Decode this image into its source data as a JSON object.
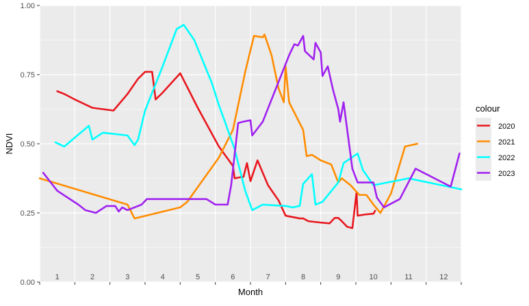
{
  "chart_data": {
    "type": "line",
    "xlabel": "Month",
    "ylabel": "NDVI",
    "ylim": [
      0,
      1
    ],
    "xlim": [
      0.5,
      12.5
    ],
    "y_ticks": [
      "0.00",
      "0.25",
      "0.50",
      "0.75",
      "1.00"
    ],
    "y_tick_values": [
      0,
      0.25,
      0.5,
      0.75,
      1
    ],
    "month_labels": [
      "1",
      "2",
      "3",
      "4",
      "5",
      "6",
      "7",
      "8",
      "9",
      "10",
      "11",
      "12"
    ],
    "grid": true,
    "legend": {
      "title": "colour",
      "placement": "right"
    },
    "series": [
      {
        "name": "2020",
        "color": "#e8161d",
        "points": [
          [
            1.0,
            0.69
          ],
          [
            1.2,
            0.68
          ],
          [
            1.5,
            0.66
          ],
          [
            2.0,
            0.63
          ],
          [
            2.3,
            0.625
          ],
          [
            2.6,
            0.62
          ],
          [
            3.0,
            0.68
          ],
          [
            3.3,
            0.735
          ],
          [
            3.5,
            0.76
          ],
          [
            3.7,
            0.76
          ],
          [
            3.8,
            0.66
          ],
          [
            4.0,
            0.685
          ],
          [
            4.5,
            0.755
          ],
          [
            5.0,
            0.63
          ],
          [
            5.6,
            0.49
          ],
          [
            6.0,
            0.42
          ],
          [
            6.05,
            0.375
          ],
          [
            6.25,
            0.38
          ],
          [
            6.3,
            0.38
          ],
          [
            6.4,
            0.43
          ],
          [
            6.5,
            0.365
          ],
          [
            6.7,
            0.44
          ],
          [
            7.0,
            0.35
          ],
          [
            7.3,
            0.295
          ],
          [
            7.5,
            0.24
          ],
          [
            7.9,
            0.23
          ],
          [
            8.0,
            0.23
          ],
          [
            8.15,
            0.22
          ],
          [
            8.5,
            0.215
          ],
          [
            8.75,
            0.212
          ],
          [
            8.9,
            0.232
          ],
          [
            9.0,
            0.232
          ],
          [
            9.1,
            0.22
          ],
          [
            9.25,
            0.2
          ],
          [
            9.4,
            0.195
          ],
          [
            9.52,
            0.325
          ],
          [
            9.55,
            0.24
          ],
          [
            9.8,
            0.245
          ],
          [
            10.0,
            0.247
          ],
          [
            10.05,
            0.258
          ]
        ]
      },
      {
        "name": "2021",
        "color": "#ff8c00",
        "points": [
          [
            0.5,
            0.375
          ],
          [
            3.0,
            0.28
          ],
          [
            3.2,
            0.23
          ],
          [
            4.5,
            0.27
          ],
          [
            4.7,
            0.29
          ],
          [
            5.6,
            0.45
          ],
          [
            6.0,
            0.55
          ],
          [
            6.35,
            0.76
          ],
          [
            6.6,
            0.89
          ],
          [
            6.85,
            0.885
          ],
          [
            6.9,
            0.895
          ],
          [
            7.1,
            0.82
          ],
          [
            7.3,
            0.7
          ],
          [
            7.45,
            0.65
          ],
          [
            7.5,
            0.78
          ],
          [
            7.6,
            0.65
          ],
          [
            8.0,
            0.55
          ],
          [
            8.1,
            0.455
          ],
          [
            8.25,
            0.46
          ],
          [
            8.5,
            0.44
          ],
          [
            8.8,
            0.425
          ],
          [
            9.0,
            0.36
          ],
          [
            9.1,
            0.375
          ],
          [
            9.35,
            0.35
          ],
          [
            9.6,
            0.315
          ],
          [
            9.8,
            0.315
          ],
          [
            10.0,
            0.28
          ],
          [
            10.2,
            0.25
          ],
          [
            10.5,
            0.32
          ],
          [
            10.9,
            0.49
          ],
          [
            11.25,
            0.5
          ]
        ]
      },
      {
        "name": "2022",
        "color": "#00ffff",
        "points": [
          [
            0.95,
            0.505
          ],
          [
            1.2,
            0.49
          ],
          [
            1.9,
            0.565
          ],
          [
            2.0,
            0.515
          ],
          [
            2.3,
            0.54
          ],
          [
            3.0,
            0.53
          ],
          [
            3.2,
            0.495
          ],
          [
            3.3,
            0.515
          ],
          [
            3.5,
            0.62
          ],
          [
            4.0,
            0.78
          ],
          [
            4.4,
            0.915
          ],
          [
            4.6,
            0.93
          ],
          [
            4.9,
            0.875
          ],
          [
            5.4,
            0.72
          ],
          [
            5.6,
            0.64
          ],
          [
            5.8,
            0.57
          ],
          [
            6.05,
            0.48
          ],
          [
            6.35,
            0.33
          ],
          [
            6.55,
            0.26
          ],
          [
            6.85,
            0.28
          ],
          [
            7.5,
            0.275
          ],
          [
            7.7,
            0.27
          ],
          [
            7.9,
            0.275
          ],
          [
            8.0,
            0.355
          ],
          [
            8.25,
            0.39
          ],
          [
            8.35,
            0.28
          ],
          [
            8.55,
            0.29
          ],
          [
            9.0,
            0.36
          ],
          [
            9.15,
            0.43
          ],
          [
            9.55,
            0.465
          ],
          [
            9.7,
            0.405
          ],
          [
            10.0,
            0.35
          ],
          [
            11.0,
            0.375
          ],
          [
            12.5,
            0.335
          ]
        ]
      },
      {
        "name": "2023",
        "color": "#a020f0",
        "points": [
          [
            0.6,
            0.395
          ],
          [
            1.0,
            0.33
          ],
          [
            1.6,
            0.28
          ],
          [
            1.8,
            0.26
          ],
          [
            2.1,
            0.25
          ],
          [
            2.4,
            0.275
          ],
          [
            2.65,
            0.275
          ],
          [
            2.75,
            0.255
          ],
          [
            2.85,
            0.27
          ],
          [
            3.0,
            0.26
          ],
          [
            3.2,
            0.27
          ],
          [
            3.4,
            0.28
          ],
          [
            3.55,
            0.3
          ],
          [
            4.5,
            0.3
          ],
          [
            5.25,
            0.3
          ],
          [
            5.5,
            0.28
          ],
          [
            5.85,
            0.28
          ],
          [
            5.95,
            0.35
          ],
          [
            6.15,
            0.575
          ],
          [
            6.3,
            0.58
          ],
          [
            6.5,
            0.585
          ],
          [
            6.55,
            0.53
          ],
          [
            6.85,
            0.58
          ],
          [
            7.6,
            0.82
          ],
          [
            7.75,
            0.86
          ],
          [
            7.85,
            0.855
          ],
          [
            8.0,
            0.89
          ],
          [
            8.05,
            0.835
          ],
          [
            8.3,
            0.805
          ],
          [
            8.35,
            0.865
          ],
          [
            8.5,
            0.83
          ],
          [
            8.55,
            0.745
          ],
          [
            8.7,
            0.78
          ],
          [
            8.85,
            0.695
          ],
          [
            9.0,
            0.625
          ],
          [
            9.05,
            0.58
          ],
          [
            9.15,
            0.65
          ],
          [
            9.4,
            0.41
          ],
          [
            9.55,
            0.36
          ],
          [
            10.0,
            0.36
          ],
          [
            10.1,
            0.305
          ],
          [
            10.3,
            0.27
          ],
          [
            10.75,
            0.3
          ],
          [
            11.2,
            0.41
          ],
          [
            12.2,
            0.345
          ],
          [
            12.45,
            0.465
          ]
        ]
      }
    ]
  }
}
